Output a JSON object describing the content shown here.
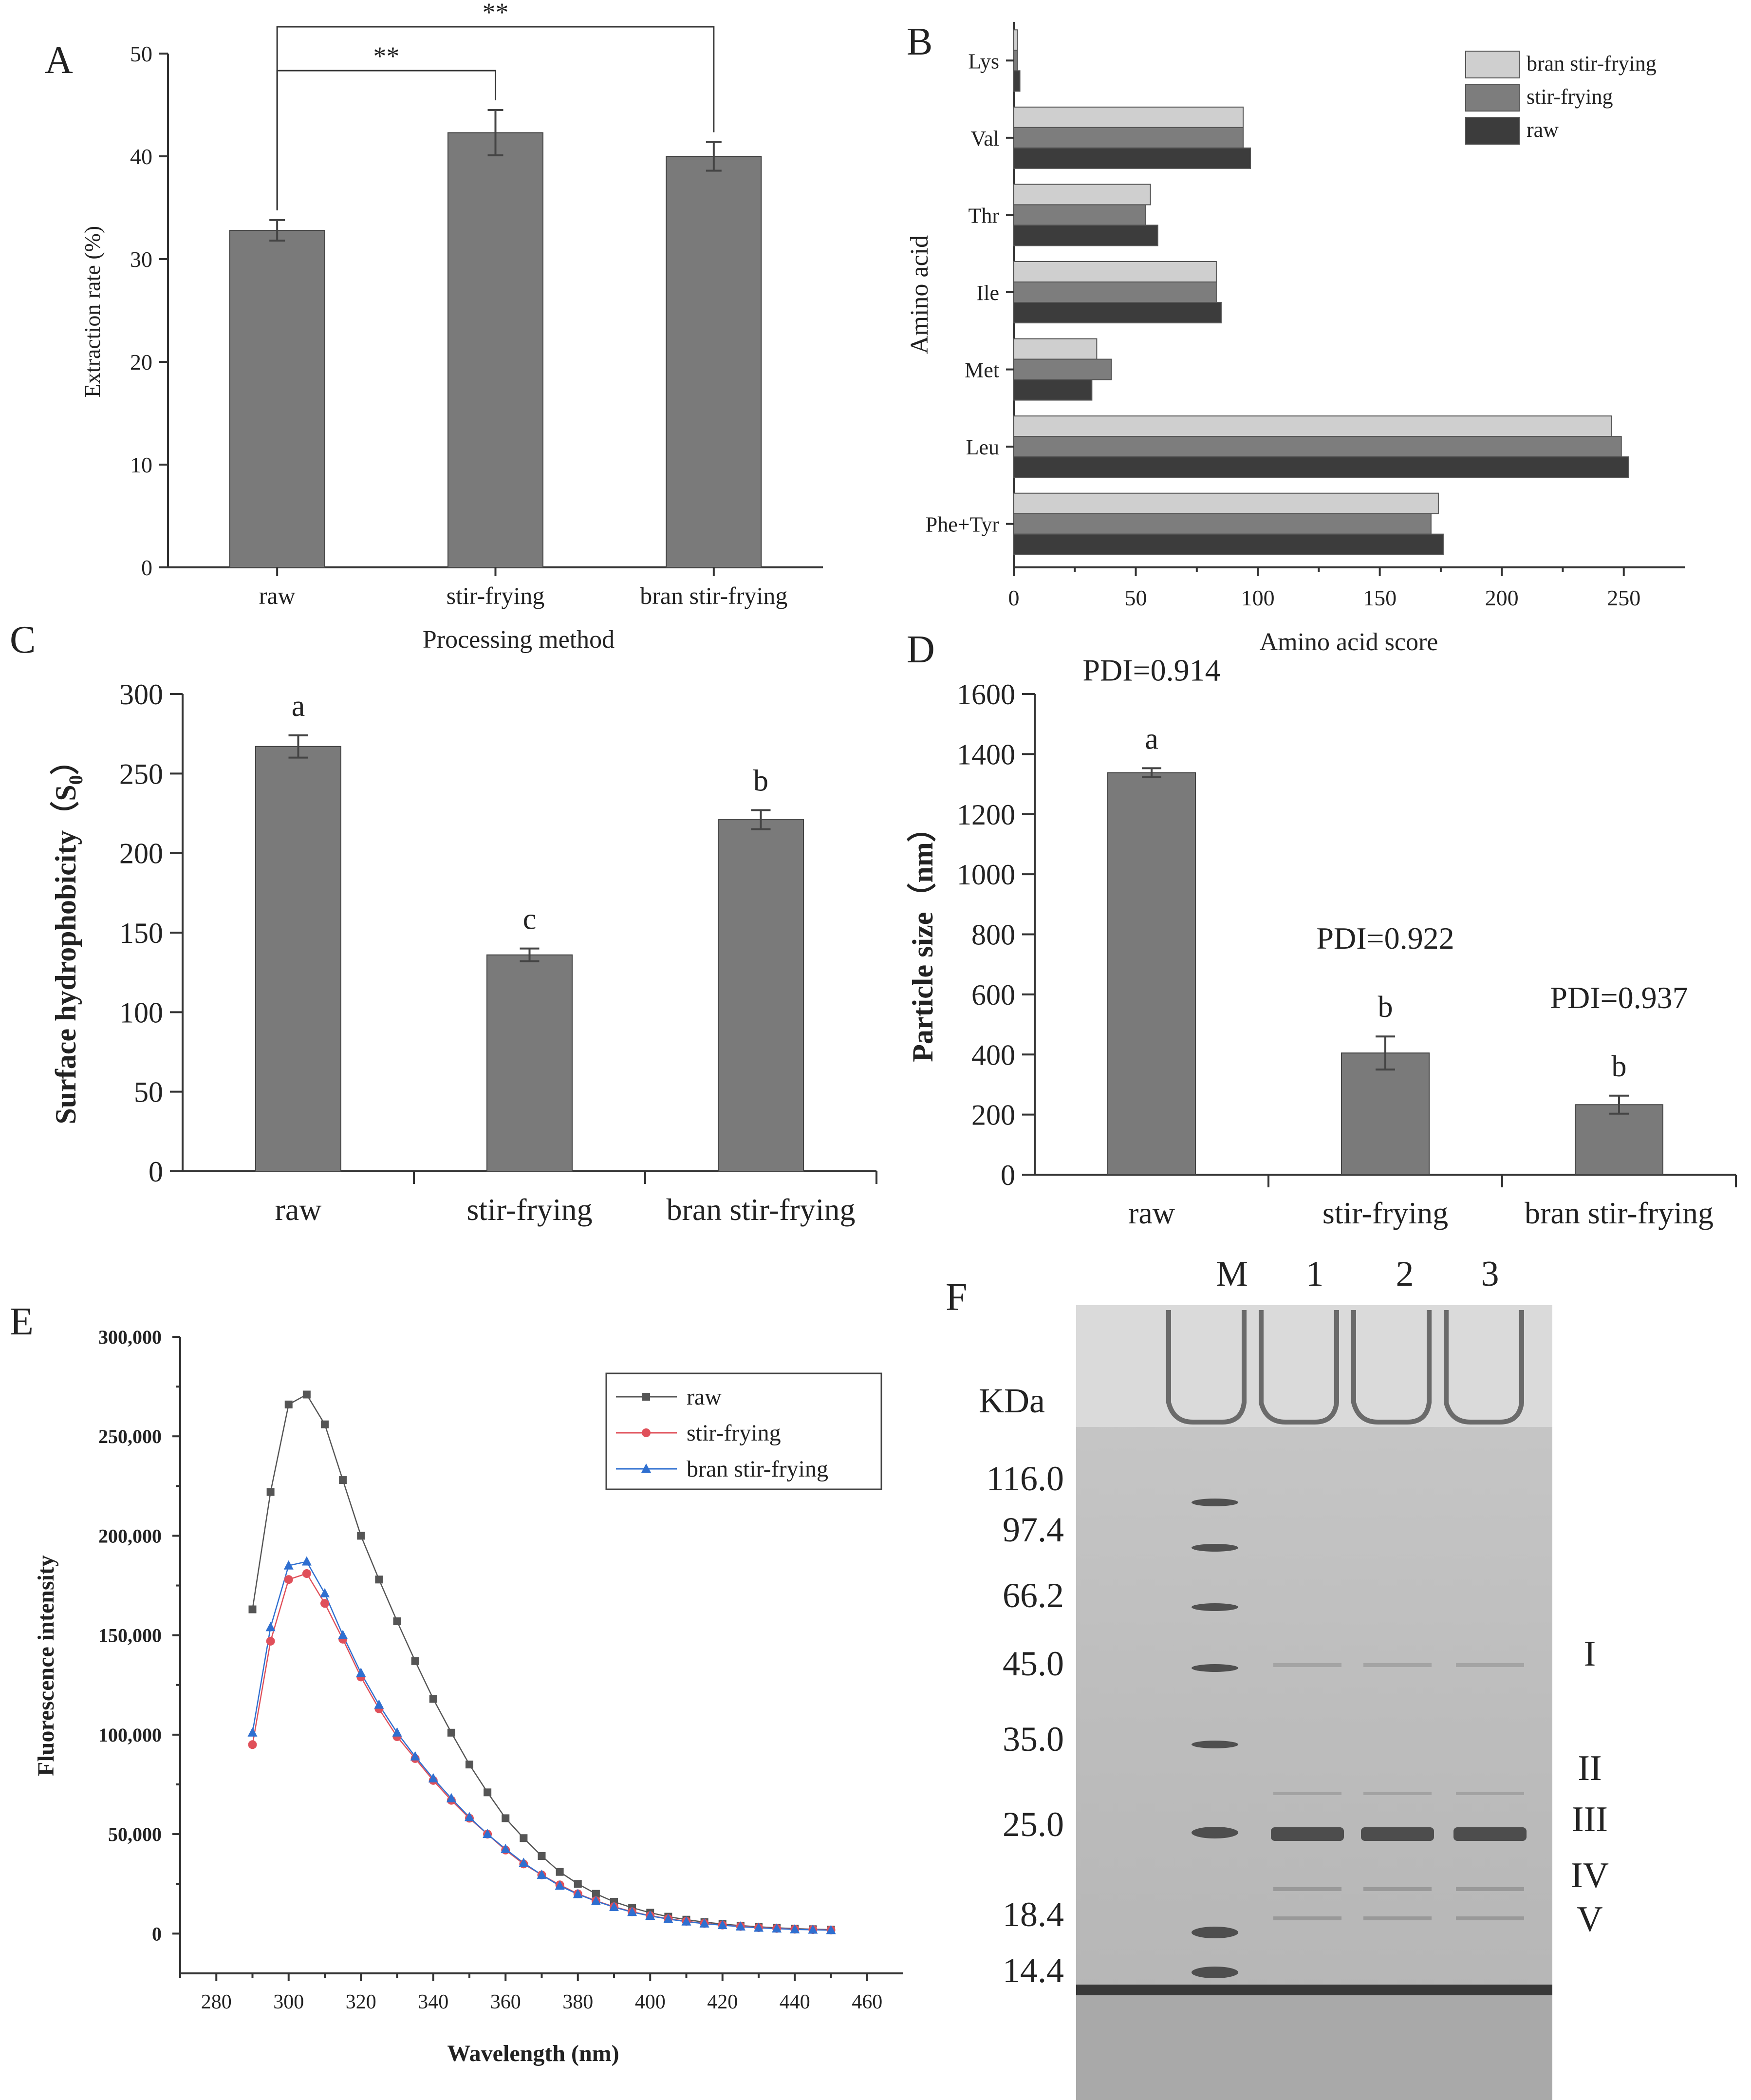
{
  "figure": {
    "panel_labels": [
      "A",
      "B",
      "C",
      "D",
      "E",
      "F"
    ]
  },
  "chart_data": [
    {
      "panel": "A",
      "type": "bar",
      "categories": [
        "raw",
        "stir-frying",
        "bran stir-frying"
      ],
      "values": [
        32.8,
        42.3,
        40.0
      ],
      "errors": [
        1.0,
        2.2,
        1.4
      ],
      "xlabel": "Processing method",
      "ylabel": "Extraction rate (%)",
      "ylim": [
        0,
        50
      ],
      "yticks": [
        "0",
        "10",
        "20",
        "30",
        "40",
        "50"
      ],
      "annotations": [
        {
          "from": "raw",
          "to": "stir-frying",
          "text": "**"
        },
        {
          "from": "raw",
          "to": "bran stir-frying",
          "text": "**"
        }
      ],
      "bar_color": "#7a7a7a"
    },
    {
      "panel": "B",
      "type": "bar",
      "orientation": "horizontal",
      "categories": [
        "Lys",
        "Val",
        "Thr",
        "Ile",
        "Met",
        "Leu",
        "Phe+Tyr"
      ],
      "series": [
        {
          "name": "bran stir-frying",
          "values": [
            1.5,
            94,
            56,
            83,
            34,
            245,
            174
          ],
          "color": "#cfcfcf"
        },
        {
          "name": "stir-frying",
          "values": [
            1.5,
            94,
            54,
            83,
            40,
            249,
            171
          ],
          "color": "#7d7d7d"
        },
        {
          "name": "raw",
          "values": [
            2.5,
            97,
            59,
            85,
            32,
            252,
            176
          ],
          "color": "#3c3c3c"
        }
      ],
      "xlabel": "Amino acid score",
      "ylabel": "Amino acid",
      "xlim": [
        0,
        275
      ],
      "xticks": [
        "0",
        "50",
        "100",
        "150",
        "200",
        "250"
      ],
      "legend": "top-right"
    },
    {
      "panel": "C",
      "type": "bar",
      "categories": [
        "raw",
        "stir-frying",
        "bran stir-frying"
      ],
      "values": [
        267,
        136,
        221
      ],
      "errors": [
        7,
        4,
        6
      ],
      "letters": [
        "a",
        "c",
        "b"
      ],
      "xlabel": "",
      "ylabel_main": "Surface hydrophobicity（S",
      "ylabel_sub": "0",
      "ylabel_close": "）",
      "ylim": [
        0,
        300
      ],
      "yticks": [
        "0",
        "50",
        "100",
        "150",
        "200",
        "250",
        "300"
      ],
      "bar_color": "#7a7a7a"
    },
    {
      "panel": "D",
      "type": "bar",
      "categories": [
        "raw",
        "stir-frying",
        "bran stir-frying"
      ],
      "values": [
        1338,
        405,
        233
      ],
      "errors": [
        15,
        55,
        30
      ],
      "letters": [
        "a",
        "b",
        "b"
      ],
      "pdi": [
        "PDI=0.914",
        "PDI=0.922",
        "PDI=0.937"
      ],
      "xlabel": "",
      "ylabel": "Particle size（nm）",
      "ylim": [
        0,
        1600
      ],
      "yticks": [
        "0",
        "200",
        "400",
        "600",
        "800",
        "1000",
        "1200",
        "1400",
        "1600"
      ],
      "bar_color": "#7a7a7a"
    },
    {
      "panel": "E",
      "type": "line",
      "x": [
        290,
        295,
        300,
        305,
        310,
        315,
        320,
        325,
        330,
        335,
        340,
        345,
        350,
        355,
        360,
        365,
        370,
        375,
        380,
        385,
        390,
        395,
        400,
        405,
        410,
        415,
        420,
        425,
        430,
        435,
        440,
        445,
        450
      ],
      "series": [
        {
          "name": "raw",
          "color": "#555555",
          "marker": "square",
          "values": [
            163000,
            222000,
            266000,
            271000,
            256000,
            228000,
            200000,
            178000,
            157000,
            137000,
            118000,
            101000,
            85000,
            71000,
            58000,
            48000,
            39000,
            31000,
            25000,
            20000,
            16000,
            13000,
            10500,
            8500,
            7000,
            5800,
            4800,
            4000,
            3400,
            2900,
            2500,
            2200,
            2000
          ]
        },
        {
          "name": "stir-frying",
          "color": "#e0505a",
          "marker": "circle",
          "values": [
            95000,
            147000,
            178000,
            181000,
            166000,
            148000,
            129000,
            113000,
            99000,
            88000,
            77000,
            67000,
            58000,
            50000,
            42000,
            35000,
            29500,
            24500,
            20000,
            16500,
            13500,
            11000,
            9000,
            7500,
            6200,
            5100,
            4300,
            3600,
            3000,
            2600,
            2200,
            2000,
            1800
          ]
        },
        {
          "name": "bran stir-frying",
          "color": "#2f6fd0",
          "marker": "triangle",
          "values": [
            101000,
            154000,
            185000,
            187000,
            171000,
            150000,
            131000,
            115000,
            101000,
            89000,
            78000,
            68000,
            58500,
            50000,
            42500,
            35500,
            29500,
            24000,
            19800,
            16300,
            13300,
            10800,
            8900,
            7300,
            6000,
            5000,
            4200,
            3500,
            2900,
            2500,
            2100,
            1900,
            1700
          ]
        }
      ],
      "xlabel": "Wavelength (nm)",
      "ylabel": "Fluorescence intensity",
      "xlim": [
        270,
        470
      ],
      "ylim": [
        -20000,
        300000
      ],
      "xticks": [
        "280",
        "300",
        "320",
        "340",
        "360",
        "380",
        "400",
        "420",
        "440",
        "460"
      ],
      "yticks": [
        "0",
        "50,000",
        "100,000",
        "150,000",
        "200,000",
        "250,000",
        "300,000"
      ],
      "legend": "top-right"
    }
  ],
  "gel": {
    "panel": "F",
    "lane_labels": [
      "M",
      "1",
      "2",
      "3"
    ],
    "unit_label": "KDa",
    "markers": [
      "116.0",
      "97.4",
      "66.2",
      "45.0",
      "35.0",
      "25.0",
      "18.4",
      "14.4"
    ],
    "band_labels": [
      "I",
      "II",
      "III",
      "IV",
      "V"
    ]
  }
}
